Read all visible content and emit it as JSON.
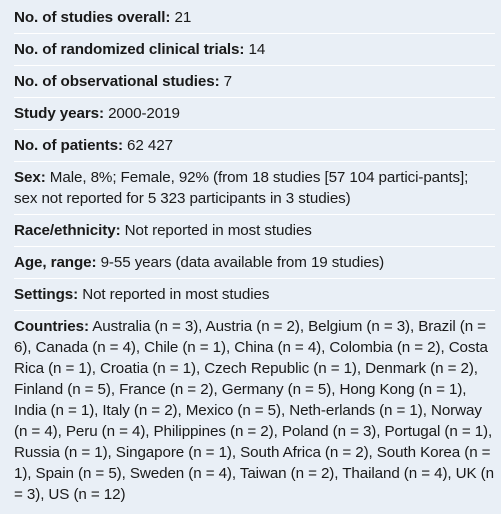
{
  "rows": [
    {
      "label": "No. of studies overall:",
      "value": " 21"
    },
    {
      "label": "No. of randomized clinical trials:",
      "value": " 14"
    },
    {
      "label": "No. of observational studies:",
      "value": " 7"
    },
    {
      "label": "Study years:",
      "value": " 2000-2019"
    },
    {
      "label": "No. of patients:",
      "value": " 62 427"
    },
    {
      "label": "Sex:",
      "value": " Male, 8%; Female, 92% (from 18 studies [57 104 partici-pants]; sex not reported for 5 323 participants in 3 studies)"
    },
    {
      "label": "Race/ethnicity:",
      "value": " Not reported in most studies"
    },
    {
      "label": "Age, range:",
      "value": " 9-55 years (data available from 19 studies)"
    },
    {
      "label": "Settings:",
      "value": " Not reported in most studies"
    },
    {
      "label": "Countries:",
      "value": " Australia (n = 3), Austria (n = 2), Belgium (n = 3), Brazil (n = 6), Canada (n = 4), Chile (n = 1), China (n = 4), Colombia (n = 2), Costa Rica (n = 1), Croatia (n = 1), Czech Republic (n = 1), Denmark (n = 2), Finland (n = 5), France (n = 2), Germany (n = 5), Hong Kong (n = 1), India (n = 1), Italy (n = 2), Mexico (n = 5), Neth-erlands (n = 1), Norway (n = 4), Peru (n = 4), Philippines (n = 2), Poland (n = 3), Portugal (n = 1), Russia (n = 1), Singapore (n = 1), South Africa (n = 2), South Korea (n = 1), Spain (n = 5), Sweden (n = 4), Taiwan (n = 2), Thailand (n = 4), UK (n = 3), US (n = 12)"
    }
  ]
}
